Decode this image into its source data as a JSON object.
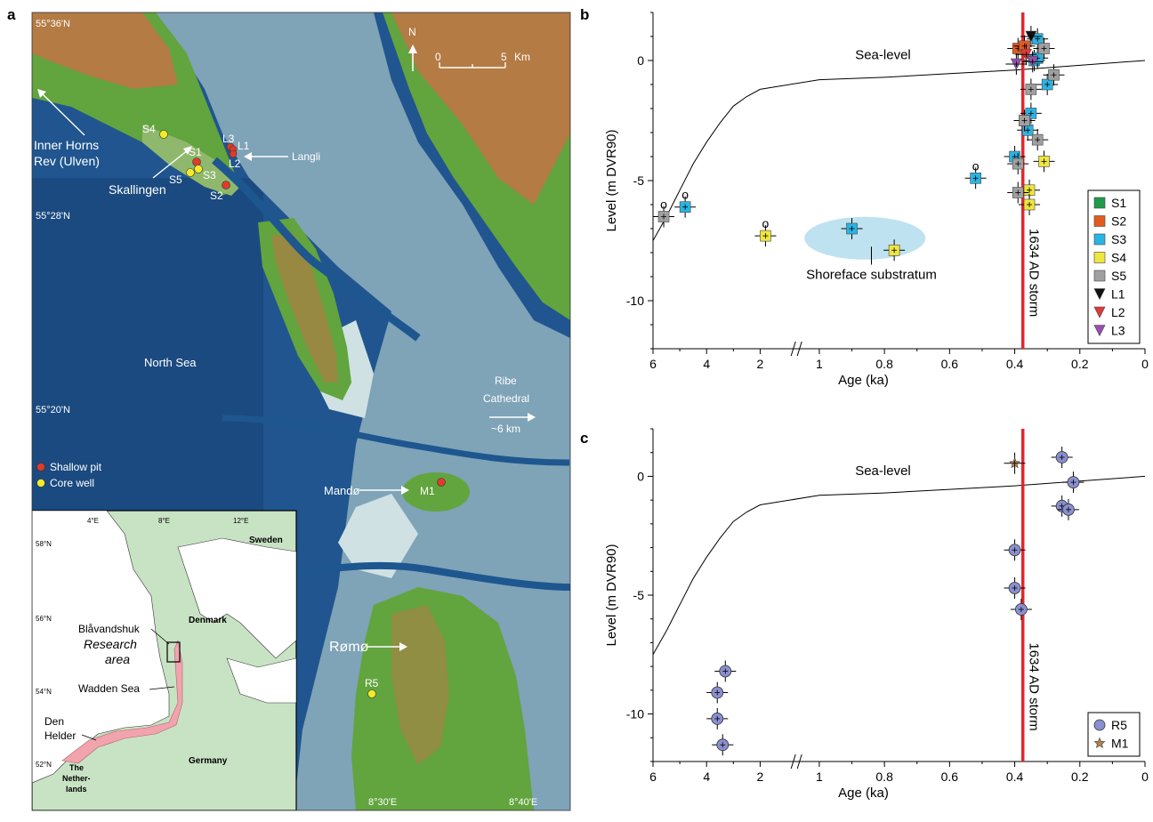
{
  "panel_letters": [
    "a",
    "b",
    "c"
  ],
  "map": {
    "lat_labels": [
      "55°36'N",
      "55°28'N",
      "55°20'N"
    ],
    "lon_labels": [
      "8°30'E",
      "8°40'E"
    ],
    "north": "N",
    "scale": {
      "start": "0",
      "end": "5",
      "unit": "Km"
    },
    "place_labels": [
      "Inner Horns",
      "Rev (Ulven)",
      "Skallingen",
      "Langli",
      "North Sea",
      "Ribe",
      "Cathedral",
      "~6 km",
      "Mandø",
      "Rømø"
    ],
    "site_labels": [
      "S4",
      "S1",
      "S5",
      "S3",
      "S2",
      "L3",
      "L1",
      "L2",
      "M1",
      "R5"
    ],
    "legend": [
      {
        "label": "Shallow pit",
        "color": "#e03a2a"
      },
      {
        "label": "Core well",
        "color": "#f3ea2a"
      }
    ],
    "inset": {
      "lon_labels": [
        "4°E",
        "8°E",
        "12°E"
      ],
      "lat_labels": [
        "58°N",
        "56°N",
        "54°N",
        "52°N"
      ],
      "countries": [
        "Sweden",
        "Denmark",
        "Germany",
        "The",
        "Nether-",
        "lands"
      ],
      "places": [
        "Blåvandshuk",
        "Wadden Sea",
        "Den",
        "Helder"
      ],
      "research_area": [
        "Research",
        "area"
      ]
    }
  },
  "chart_data": [
    {
      "panel": "b",
      "type": "scatter",
      "xlabel": "Age (ka)",
      "ylabel": "Level (m DVR90)",
      "xaxis_broken": true,
      "xticks_left": [
        "6",
        "4",
        "2"
      ],
      "xticks_right": [
        "1",
        "0.8",
        "0.6",
        "0.4",
        "0.2",
        "0"
      ],
      "yticks": [
        "0",
        "-5",
        "-10"
      ],
      "ylim": [
        -12,
        2
      ],
      "sea_level_label": "Sea-level",
      "sea_level": [
        [
          6,
          -7.5
        ],
        [
          5.5,
          -6.5
        ],
        [
          5,
          -5.4
        ],
        [
          4.5,
          -4.3
        ],
        [
          4,
          -3.4
        ],
        [
          3.5,
          -2.6
        ],
        [
          3,
          -1.9
        ],
        [
          2.5,
          -1.5
        ],
        [
          2,
          -1.2
        ],
        [
          1,
          -0.8
        ],
        [
          0.8,
          -0.7
        ],
        [
          0.6,
          -0.55
        ],
        [
          0.4,
          -0.4
        ],
        [
          0.2,
          -0.2
        ],
        [
          0,
          0
        ]
      ],
      "storm_line": {
        "x": 0.375,
        "label": "1634 AD storm",
        "color": "#e0282c"
      },
      "annotation": "Shoreface substratum",
      "outlier_mark": "o",
      "series": [
        {
          "name": "S1",
          "marker": "square",
          "color": "#1f9a4a",
          "points": []
        },
        {
          "name": "S2",
          "marker": "square",
          "color": "#e35a1f",
          "points": [
            [
              0.39,
              0.5
            ],
            [
              0.37,
              0.6
            ]
          ]
        },
        {
          "name": "S3",
          "marker": "square",
          "color": "#2ab4e4",
          "points": [
            [
              4.8,
              -6.1,
              1
            ],
            [
              0.9,
              -7.0,
              0
            ],
            [
              0.52,
              -4.9,
              1
            ],
            [
              0.4,
              -4.0,
              0
            ],
            [
              0.36,
              -2.9,
              0
            ],
            [
              0.35,
              -2.2,
              0
            ],
            [
              0.37,
              -2.5,
              0
            ],
            [
              0.3,
              -1.0,
              0
            ],
            [
              0.34,
              0.0,
              0
            ],
            [
              0.33,
              0.9,
              0
            ],
            [
              0.33,
              0.1,
              0
            ]
          ]
        },
        {
          "name": "S4",
          "marker": "square",
          "color": "#efe63e",
          "points": [
            [
              1.8,
              -7.3,
              1
            ],
            [
              0.77,
              -7.9,
              0
            ],
            [
              0.31,
              -4.2,
              0
            ],
            [
              0.355,
              -5.4,
              0
            ],
            [
              0.355,
              -6.0,
              0
            ]
          ]
        },
        {
          "name": "S5",
          "marker": "square",
          "color": "#a0a0a0",
          "points": [
            [
              5.6,
              -6.5,
              1
            ],
            [
              0.39,
              -4.3,
              0
            ],
            [
              0.39,
              -5.5,
              0
            ],
            [
              0.33,
              -3.3,
              0
            ],
            [
              0.37,
              -2.5,
              0
            ],
            [
              0.35,
              -1.2,
              0
            ],
            [
              0.31,
              0.5,
              0
            ],
            [
              0.28,
              -0.6,
              0
            ]
          ]
        },
        {
          "name": "L1",
          "marker": "triangle-down",
          "color": "#111111",
          "points": [
            [
              0.35,
              1.0
            ]
          ]
        },
        {
          "name": "L2",
          "marker": "triangle-down",
          "color": "#e03a3a",
          "points": [
            [
              0.365,
              0.25
            ]
          ]
        },
        {
          "name": "L3",
          "marker": "triangle-down",
          "color": "#9a4fb0",
          "points": [
            [
              0.395,
              -0.15
            ],
            [
              0.345,
              -0.05
            ]
          ]
        }
      ]
    },
    {
      "panel": "c",
      "type": "scatter",
      "xlabel": "Age (ka)",
      "ylabel": "Level (m DVR90)",
      "xaxis_broken": true,
      "xticks_left": [
        "6",
        "4",
        "2"
      ],
      "xticks_right": [
        "1",
        "0.8",
        "0.6",
        "0.4",
        "0.2",
        "0"
      ],
      "yticks": [
        "0",
        "-5",
        "-10"
      ],
      "ylim": [
        -12,
        2
      ],
      "sea_level_label": "Sea-level",
      "sea_level": [
        [
          6,
          -7.5
        ],
        [
          5.5,
          -6.5
        ],
        [
          5,
          -5.4
        ],
        [
          4.5,
          -4.3
        ],
        [
          4,
          -3.4
        ],
        [
          3.5,
          -2.6
        ],
        [
          3,
          -1.9
        ],
        [
          2.5,
          -1.5
        ],
        [
          2,
          -1.2
        ],
        [
          1,
          -0.8
        ],
        [
          0.8,
          -0.7
        ],
        [
          0.6,
          -0.55
        ],
        [
          0.4,
          -0.4
        ],
        [
          0.2,
          -0.2
        ],
        [
          0,
          0
        ]
      ],
      "storm_line": {
        "x": 0.375,
        "label": "1634 AD storm",
        "color": "#e0282c"
      },
      "series": [
        {
          "name": "R5",
          "marker": "circle",
          "color": "#8a8fd0",
          "points": [
            [
              3.3,
              -8.2
            ],
            [
              3.6,
              -9.1
            ],
            [
              3.6,
              -10.2
            ],
            [
              3.4,
              -11.3
            ],
            [
              0.4,
              -3.1
            ],
            [
              0.4,
              -4.7
            ],
            [
              0.38,
              -5.6
            ],
            [
              0.255,
              0.8
            ],
            [
              0.22,
              -0.25
            ],
            [
              0.255,
              -1.25
            ],
            [
              0.235,
              -1.4
            ]
          ]
        },
        {
          "name": "M1",
          "marker": "star",
          "color": "#b08250",
          "points": [
            [
              0.4,
              0.55
            ]
          ]
        }
      ]
    }
  ]
}
